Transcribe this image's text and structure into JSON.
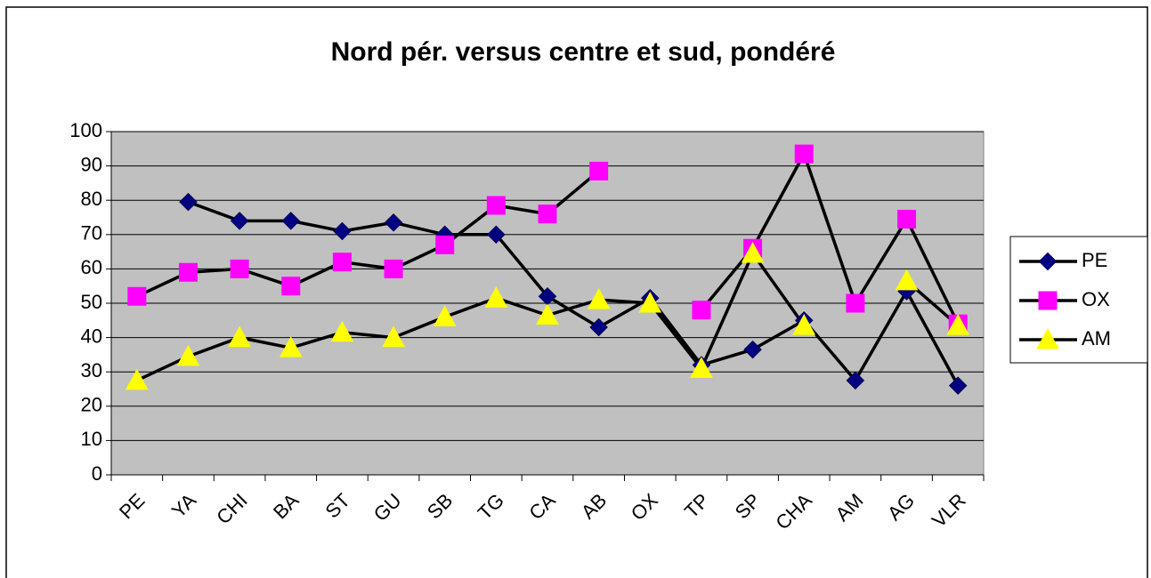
{
  "chart_data": {
    "type": "line",
    "title": "Nord pér. versus centre et sud, pondéré",
    "categories": [
      "PE",
      "YA",
      "CHI",
      "BA",
      "ST",
      "GU",
      "SB",
      "TG",
      "CA",
      "AB",
      "OX",
      "TP",
      "SP",
      "CHA",
      "AM",
      "AG",
      "VLR"
    ],
    "series": [
      {
        "name": "PE",
        "color": "#000080",
        "marker": "diamond",
        "values": [
          null,
          79.5,
          74,
          74,
          71,
          73.5,
          70,
          70,
          52,
          43,
          51.5,
          32,
          36.5,
          45,
          27.5,
          53.5,
          26
        ]
      },
      {
        "name": "OX",
        "color": "#ff00ff",
        "marker": "square",
        "values": [
          52,
          59,
          60,
          55,
          62,
          60,
          67,
          78.5,
          76,
          88.5,
          null,
          48,
          66,
          93.5,
          50,
          74.5,
          44
        ]
      },
      {
        "name": "AM",
        "color": "#ffff00",
        "marker": "triangle",
        "values": [
          27.5,
          34.5,
          40,
          37,
          41.5,
          40,
          46,
          51.5,
          46.5,
          51,
          50,
          31,
          64.5,
          43.5,
          null,
          56.5,
          43.5
        ]
      }
    ],
    "line_color": "#000000",
    "plot_background": "#c0c0c0",
    "ylim": [
      0,
      100
    ],
    "yticks": [
      0,
      10,
      20,
      30,
      40,
      50,
      60,
      70,
      80,
      90,
      100
    ],
    "grid": true,
    "legend": "right"
  }
}
